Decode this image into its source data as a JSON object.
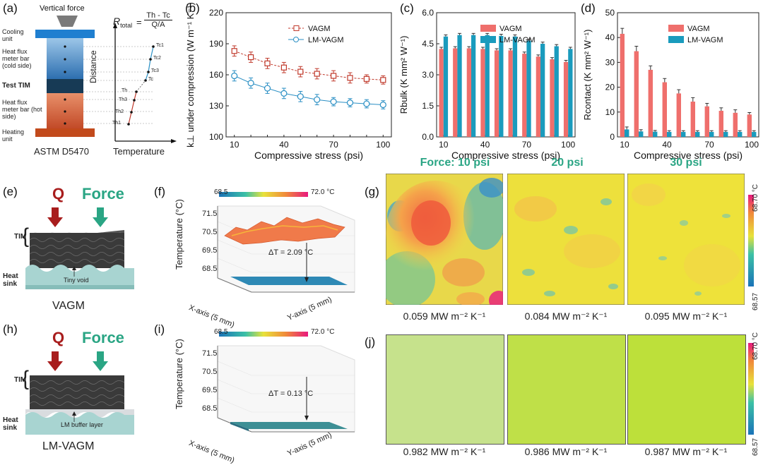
{
  "figure": {
    "panel_labels": [
      "(a)",
      "(b)",
      "(c)",
      "(d)",
      "(e)",
      "(f)",
      "(g)",
      "(h)",
      "(i)",
      "(j)"
    ]
  },
  "panel_a": {
    "top_label": "Vertical force",
    "formula_lhs": "R",
    "formula_sub": "total",
    "formula_num": "Th - Tc",
    "formula_den": "Q/A",
    "stack_labels": [
      "Cooling unit",
      "Heat flux meter bar (cold side)",
      "Test TIM",
      "Heat flux meter bar (hot side)",
      "Heating unit"
    ],
    "caption": "ASTM D5470",
    "axis_y": "Distance",
    "axis_x": "Temperature",
    "temps": [
      "Tc1",
      "Tc2",
      "Tc3",
      "Tc",
      "Th",
      "Th3",
      "Th2",
      "Th1"
    ]
  },
  "chart_data": [
    {
      "panel": "b",
      "type": "line",
      "x": [
        10,
        20,
        30,
        40,
        50,
        60,
        70,
        80,
        90,
        100
      ],
      "series": [
        {
          "name": "VAGM",
          "values": [
            183,
            177,
            171,
            167,
            163,
            161,
            159,
            157,
            156,
            155
          ],
          "err": [
            5,
            5,
            5,
            5,
            5,
            5,
            5,
            5,
            4,
            4
          ],
          "color": "#c0392b"
        },
        {
          "name": "LM-VAGM",
          "values": [
            159,
            152,
            147,
            142,
            139,
            136,
            134,
            133,
            132,
            131
          ],
          "err": [
            5,
            5,
            5,
            5,
            5,
            5,
            4,
            4,
            4,
            4
          ],
          "color": "#2a8fc4"
        }
      ],
      "xlabel": "Compressive stress (psi)",
      "ylabel": "k⊥ under compression (W m⁻¹ K⁻¹)",
      "xticks": [
        "10",
        "40",
        "70",
        "100"
      ],
      "yticks": [
        "100",
        "130",
        "160",
        "190",
        "220"
      ],
      "ylim": [
        100,
        220
      ]
    },
    {
      "panel": "c",
      "type": "bar",
      "x": [
        10,
        20,
        30,
        40,
        50,
        60,
        70,
        80,
        90,
        100
      ],
      "series": [
        {
          "name": "VAGM",
          "values": [
            4.25,
            4.28,
            4.28,
            4.25,
            4.18,
            4.18,
            4.02,
            3.88,
            3.75,
            3.62
          ],
          "color": "#ef6f6c"
        },
        {
          "name": "LM-VAGM",
          "values": [
            4.85,
            4.92,
            4.92,
            4.92,
            4.88,
            4.85,
            4.65,
            4.5,
            4.38,
            4.25
          ],
          "color": "#1a9bbd"
        }
      ],
      "xlabel": "Compressive stress (psi)",
      "ylabel": "Rbulk (K mm² W⁻¹)",
      "xticks": [
        "10",
        "40",
        "70",
        "100"
      ],
      "yticks": [
        "0.0",
        "1.5",
        "3.0",
        "4.5",
        "6.0"
      ],
      "ylim": [
        0,
        6
      ]
    },
    {
      "panel": "d",
      "type": "bar",
      "x": [
        10,
        20,
        30,
        40,
        50,
        60,
        70,
        80,
        90,
        100
      ],
      "series": [
        {
          "name": "VAGM",
          "values": [
            41.5,
            34.5,
            27,
            22,
            17.5,
            14.2,
            12.3,
            10.5,
            9.7,
            9
          ],
          "err": [
            2.2,
            2,
            1.6,
            1.5,
            1.5,
            1.6,
            1.2,
            1.2,
            1.2,
            0.8
          ],
          "color": "#ef6f6c"
        },
        {
          "name": "LM-VAGM",
          "values": [
            3,
            2.2,
            2.1,
            2,
            2,
            2,
            2,
            2,
            2,
            2
          ],
          "err": [
            1,
            0.7,
            0.5,
            0.5,
            0.5,
            0.5,
            0.5,
            0.5,
            0.5,
            0.5
          ],
          "color": "#1a9bbd"
        }
      ],
      "xlabel": "Compressive stress (psi)",
      "ylabel": "Rcontact (K mm² W⁻¹)",
      "xticks": [
        "10",
        "40",
        "70",
        "100"
      ],
      "yticks": [
        "0",
        "10",
        "20",
        "30",
        "40",
        "50"
      ],
      "ylim": [
        0,
        50
      ]
    }
  ],
  "panel_e": {
    "q": "Q",
    "force": "Force",
    "tim": "TIM",
    "sink": "Heat sink",
    "note": "Tiny void",
    "caption": "VAGM"
  },
  "panel_h": {
    "q": "Q",
    "force": "Force",
    "tim": "TIM",
    "sink": "Heat sink",
    "note": "LM buffer layer",
    "caption": "LM-VAGM"
  },
  "panel_f": {
    "cb_min": "68.5",
    "cb_max": "72.0 °C",
    "zlabel": "Temperature (°C)",
    "zticks": [
      "71.5",
      "70.5",
      "69.5",
      "68.5"
    ],
    "delta": "ΔT = 2.09 °C",
    "xaxis": "X-axis (5 mm)",
    "yaxis": "Y-axis (5 mm)"
  },
  "panel_i": {
    "cb_min": "68.5",
    "cb_max": "72.0 °C",
    "zlabel": "Temperature (°C)",
    "zticks": [
      "71.5",
      "70.5",
      "69.5",
      "68.5"
    ],
    "delta": "ΔT = 0.13 °C",
    "xaxis": "X-axis (5 mm)",
    "yaxis": "Y-axis (5 mm)"
  },
  "panel_g": {
    "titles": [
      "Force: 10 psi",
      "20 psi",
      "30 psi"
    ],
    "values": [
      "0.059 MW m⁻² K⁻¹",
      "0.084 MW m⁻² K⁻¹",
      "0.095 MW m⁻² K⁻¹"
    ],
    "cb_max": "68.70 °C",
    "cb_min": "68.57"
  },
  "panel_j": {
    "values": [
      "0.982 MW m⁻² K⁻¹",
      "0.986 MW m⁻² K⁻¹",
      "0.987 MW m⁻² K⁻¹"
    ],
    "cb_max": "68.70 °C",
    "cb_min": "68.57"
  },
  "colors": {
    "title_green": "#2aa584",
    "q_red": "#a81d1d"
  }
}
